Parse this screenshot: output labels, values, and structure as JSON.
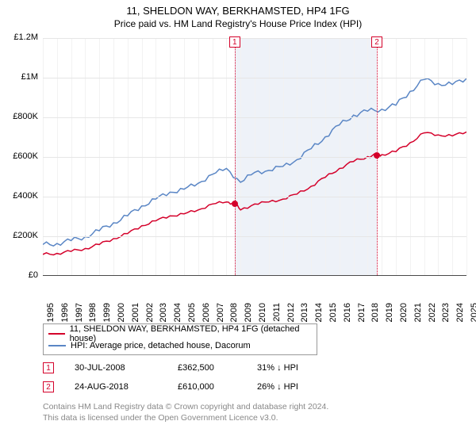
{
  "chart": {
    "type": "line",
    "title": "11, SHELDON WAY, BERKHAMSTED, HP4 1FG",
    "subtitle": "Price paid vs. HM Land Registry's House Price Index (HPI)",
    "title_fontsize": 13,
    "subtitle_fontsize": 12,
    "background_color": "#ffffff",
    "grid_color": "#e6e6e6",
    "axis_color": "#4a4a4a",
    "band_color": "#eef2f8",
    "yaxis": {
      "min": 0,
      "max": 1200000,
      "tick_step": 200000,
      "ticks": [
        "£0",
        "£200K",
        "£400K",
        "£600K",
        "£800K",
        "£1M",
        "£1.2M"
      ]
    },
    "xaxis": {
      "min": 1995,
      "max": 2025,
      "tick_step": 1,
      "ticks": [
        "1995",
        "1996",
        "1997",
        "1998",
        "1999",
        "2000",
        "2001",
        "2002",
        "2003",
        "2004",
        "2005",
        "2006",
        "2007",
        "2008",
        "2009",
        "2010",
        "2011",
        "2012",
        "2013",
        "2014",
        "2015",
        "2016",
        "2017",
        "2018",
        "2019",
        "2020",
        "2021",
        "2022",
        "2023",
        "2024",
        "2025"
      ]
    },
    "series": [
      {
        "name": "11, SHELDON WAY, BERKHAMSTED, HP4 1FG (detached house)",
        "color": "#d4002a",
        "line_width": 1.5,
        "points": [
          [
            1995,
            105000
          ],
          [
            1996,
            110000
          ],
          [
            1997,
            120000
          ],
          [
            1998,
            135000
          ],
          [
            1999,
            155000
          ],
          [
            2000,
            185000
          ],
          [
            2001,
            210000
          ],
          [
            2002,
            250000
          ],
          [
            2003,
            275000
          ],
          [
            2004,
            300000
          ],
          [
            2005,
            310000
          ],
          [
            2006,
            330000
          ],
          [
            2007,
            360000
          ],
          [
            2008,
            370000
          ],
          [
            2008.58,
            362500
          ],
          [
            2009,
            330000
          ],
          [
            2010,
            360000
          ],
          [
            2011,
            370000
          ],
          [
            2012,
            385000
          ],
          [
            2013,
            410000
          ],
          [
            2014,
            450000
          ],
          [
            2015,
            495000
          ],
          [
            2016,
            540000
          ],
          [
            2017,
            575000
          ],
          [
            2018,
            600000
          ],
          [
            2018.65,
            610000
          ],
          [
            2019,
            610000
          ],
          [
            2020,
            625000
          ],
          [
            2021,
            670000
          ],
          [
            2022,
            720000
          ],
          [
            2023,
            710000
          ],
          [
            2024,
            705000
          ],
          [
            2025,
            725000
          ]
        ]
      },
      {
        "name": "HPI: Average price, detached house, Dacorum",
        "color": "#5a86c5",
        "line_width": 1.5,
        "points": [
          [
            1995,
            155000
          ],
          [
            1996,
            160000
          ],
          [
            1997,
            175000
          ],
          [
            1998,
            195000
          ],
          [
            1999,
            225000
          ],
          [
            2000,
            265000
          ],
          [
            2001,
            300000
          ],
          [
            2002,
            350000
          ],
          [
            2003,
            385000
          ],
          [
            2004,
            420000
          ],
          [
            2005,
            435000
          ],
          [
            2006,
            465000
          ],
          [
            2007,
            510000
          ],
          [
            2008,
            540000
          ],
          [
            2009,
            470000
          ],
          [
            2010,
            520000
          ],
          [
            2011,
            530000
          ],
          [
            2012,
            550000
          ],
          [
            2013,
            585000
          ],
          [
            2014,
            640000
          ],
          [
            2015,
            700000
          ],
          [
            2016,
            760000
          ],
          [
            2017,
            810000
          ],
          [
            2018,
            830000
          ],
          [
            2019,
            840000
          ],
          [
            2020,
            860000
          ],
          [
            2021,
            930000
          ],
          [
            2022,
            990000
          ],
          [
            2023,
            970000
          ],
          [
            2024,
            965000
          ],
          [
            2025,
            995000
          ]
        ]
      }
    ],
    "markers": [
      {
        "id": "1",
        "x": 2008.58,
        "y": 362500,
        "color": "#d4002a"
      },
      {
        "id": "2",
        "x": 2018.65,
        "y": 610000,
        "color": "#d4002a"
      }
    ],
    "shaded_band": {
      "from": 2008.58,
      "to": 2018.65
    }
  },
  "sales": [
    {
      "id": "1",
      "date": "30-JUL-2008",
      "price": "£362,500",
      "pct": "31%",
      "direction": "↓",
      "vs": "HPI",
      "color": "#d4002a"
    },
    {
      "id": "2",
      "date": "24-AUG-2018",
      "price": "£610,000",
      "pct": "26%",
      "direction": "↓",
      "vs": "HPI",
      "color": "#d4002a"
    }
  ],
  "attribution": {
    "line1": "Contains HM Land Registry data © Crown copyright and database right 2024.",
    "line2": "This data is licensed under the Open Government Licence v3.0."
  }
}
